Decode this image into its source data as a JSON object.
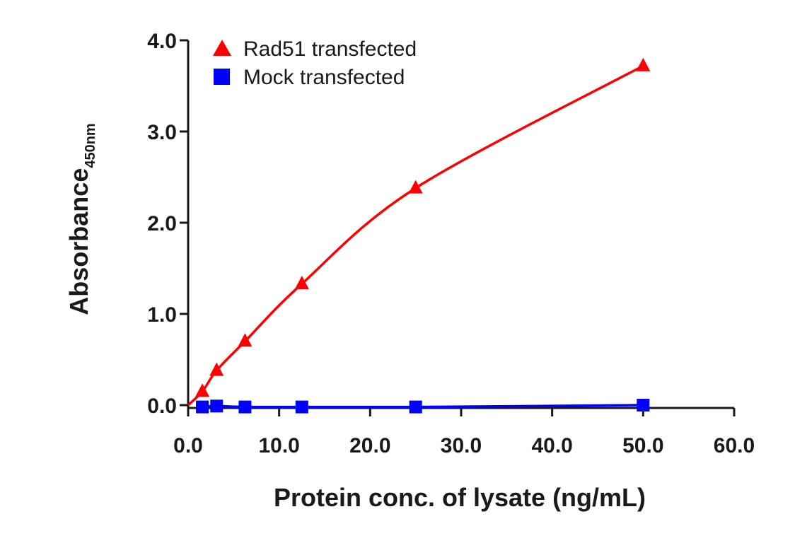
{
  "chart_data": {
    "type": "line",
    "title": "",
    "xlabel": "Protein conc. of lysate (ng/mL)",
    "ylabel_main": "Absorbance",
    "ylabel_sub": "450nm",
    "xlim": [
      0,
      60
    ],
    "ylim": [
      0,
      4
    ],
    "x_ticks": [
      "0.0",
      "10.0",
      "20.0",
      "30.0",
      "40.0",
      "50.0",
      "60.0"
    ],
    "y_ticks": [
      "0.0",
      "1.0",
      "2.0",
      "3.0",
      "4.0"
    ],
    "grid": false,
    "legend_position": "top-left",
    "series": [
      {
        "name": "Rad51 transfected",
        "color": "#ff0000",
        "marker": "triangle",
        "x": [
          0,
          1.56,
          3.13,
          6.25,
          12.5,
          25,
          50
        ],
        "y": [
          0,
          0.15,
          0.38,
          0.7,
          1.33,
          2.38,
          3.72
        ]
      },
      {
        "name": "Mock transfected",
        "color": "#0000ff",
        "marker": "square",
        "x": [
          1.56,
          3.13,
          6.25,
          12.5,
          25,
          50
        ],
        "y": [
          -0.02,
          -0.01,
          -0.02,
          -0.02,
          -0.02,
          0.0
        ]
      }
    ]
  }
}
